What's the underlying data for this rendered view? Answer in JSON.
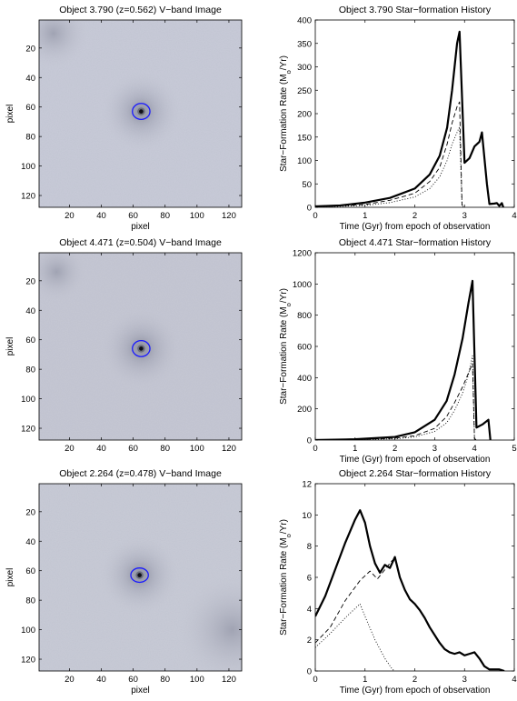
{
  "panels": [
    {
      "image": {
        "title": "Object 3.790 (z=0.562) V−band Image",
        "xlabel": "pixel",
        "ylabel": "pixel",
        "xticks": [
          20,
          40,
          60,
          80,
          100,
          120
        ],
        "yticks": [
          20,
          40,
          60,
          80,
          100,
          120
        ],
        "range": [
          1,
          128
        ],
        "source": [
          65,
          63
        ],
        "ellipse_semi_axes": [
          5.5,
          5.0
        ],
        "marker_color": "#1a1aff",
        "background_color": "#c9ccd9",
        "dark_blobs": [
          {
            "x": 10,
            "y": 10,
            "r": 14
          }
        ]
      },
      "sfh": {
        "title": "Object 3.790 Star−formation History",
        "xlabel": "Time (Gyr) from epoch of observation",
        "ylabel_main": "Star−Formation Rate (M",
        "ylabel_sub": "o",
        "ylabel_tail": "/Yr)",
        "xlim": [
          0,
          4
        ],
        "ylim": [
          0,
          400
        ],
        "xticks": [
          0,
          1,
          2,
          3,
          4
        ],
        "yticks": [
          0,
          50,
          100,
          150,
          200,
          250,
          300,
          350,
          400
        ],
        "series": [
          {
            "style": "solid",
            "points": [
              [
                0,
                2
              ],
              [
                0.5,
                4
              ],
              [
                1,
                10
              ],
              [
                1.5,
                20
              ],
              [
                2,
                40
              ],
              [
                2.3,
                70
              ],
              [
                2.5,
                110
              ],
              [
                2.65,
                170
              ],
              [
                2.75,
                250
              ],
              [
                2.85,
                350
              ],
              [
                2.9,
                375
              ],
              [
                3.0,
                95
              ],
              [
                3.1,
                105
              ],
              [
                3.2,
                130
              ],
              [
                3.3,
                140
              ],
              [
                3.35,
                160
              ],
              [
                3.45,
                50
              ],
              [
                3.5,
                7
              ],
              [
                3.6,
                8
              ],
              [
                3.65,
                9
              ],
              [
                3.7,
                3
              ],
              [
                3.75,
                9
              ],
              [
                3.78,
                0
              ]
            ]
          },
          {
            "style": "dashed",
            "points": [
              [
                0,
                1
              ],
              [
                0.5,
                3
              ],
              [
                1,
                6
              ],
              [
                1.5,
                15
              ],
              [
                2,
                30
              ],
              [
                2.3,
                55
              ],
              [
                2.5,
                85
              ],
              [
                2.65,
                135
              ],
              [
                2.75,
                180
              ],
              [
                2.85,
                215
              ],
              [
                2.9,
                225
              ],
              [
                2.95,
                5
              ],
              [
                3.0,
                0
              ]
            ]
          },
          {
            "style": "dotted",
            "points": [
              [
                0,
                1
              ],
              [
                0.5,
                2
              ],
              [
                1,
                4
              ],
              [
                1.5,
                10
              ],
              [
                2,
                22
              ],
              [
                2.3,
                40
              ],
              [
                2.5,
                65
              ],
              [
                2.65,
                100
              ],
              [
                2.75,
                135
              ],
              [
                2.85,
                160
              ],
              [
                2.9,
                172
              ],
              [
                2.95,
                2
              ],
              [
                3.0,
                0
              ]
            ]
          }
        ]
      }
    },
    {
      "image": {
        "title": "Object 4.471 (z=0.504) V−band Image",
        "xlabel": "",
        "ylabel": "pixel",
        "xticks": [
          20,
          40,
          60,
          80,
          100,
          120
        ],
        "yticks": [
          20,
          40,
          60,
          80,
          100,
          120
        ],
        "range": [
          1,
          128
        ],
        "source": [
          65,
          66
        ],
        "ellipse_semi_axes": [
          5.5,
          5.0
        ],
        "marker_color": "#1a1aff",
        "background_color": "#c6c8d4",
        "dark_blobs": [
          {
            "x": 12,
            "y": 14,
            "r": 12
          }
        ]
      },
      "sfh": {
        "title": "Object 4.471 Star−formation History",
        "xlabel": "Time (Gyr) from epoch of observation",
        "ylabel_main": "Star−Formation Rate (M",
        "ylabel_sub": "o",
        "ylabel_tail": "/Yr)",
        "xlim": [
          0,
          5
        ],
        "ylim": [
          0,
          1200
        ],
        "xticks": [
          0,
          1,
          2,
          3,
          4,
          5
        ],
        "yticks": [
          0,
          200,
          400,
          600,
          800,
          1000,
          1200
        ],
        "series": [
          {
            "style": "solid",
            "points": [
              [
                0,
                0
              ],
              [
                1,
                5
              ],
              [
                2,
                20
              ],
              [
                2.5,
                50
              ],
              [
                3,
                130
              ],
              [
                3.3,
                250
              ],
              [
                3.5,
                420
              ],
              [
                3.7,
                650
              ],
              [
                3.85,
                880
              ],
              [
                3.95,
                1020
              ],
              [
                4.05,
                80
              ],
              [
                4.2,
                100
              ],
              [
                4.35,
                130
              ],
              [
                4.4,
                0
              ]
            ]
          },
          {
            "style": "dashed",
            "points": [
              [
                0,
                0
              ],
              [
                1,
                3
              ],
              [
                2,
                12
              ],
              [
                2.5,
                28
              ],
              [
                3,
                75
              ],
              [
                3.3,
                150
              ],
              [
                3.5,
                240
              ],
              [
                3.7,
                340
              ],
              [
                3.85,
                430
              ],
              [
                3.95,
                490
              ],
              [
                4.0,
                10
              ],
              [
                4.05,
                0
              ]
            ]
          },
          {
            "style": "dotted",
            "points": [
              [
                0,
                0
              ],
              [
                1,
                2
              ],
              [
                2,
                8
              ],
              [
                2.5,
                20
              ],
              [
                3,
                55
              ],
              [
                3.3,
                110
              ],
              [
                3.5,
                190
              ],
              [
                3.7,
                300
              ],
              [
                3.85,
                420
              ],
              [
                3.95,
                540
              ],
              [
                4.0,
                5
              ],
              [
                4.05,
                0
              ]
            ]
          }
        ]
      }
    },
    {
      "image": {
        "title": "Object 2.264 (z=0.478) V−band Image",
        "xlabel": "pixel",
        "ylabel": "pixel",
        "xticks": [
          20,
          40,
          60,
          80,
          100,
          120
        ],
        "yticks": [
          20,
          40,
          60,
          80,
          100,
          120
        ],
        "range": [
          1,
          128
        ],
        "source": [
          64,
          63
        ],
        "ellipse_semi_axes": [
          5.5,
          4.5
        ],
        "marker_color": "#1a1aff",
        "background_color": "#c9ccd7",
        "dark_blobs": [
          {
            "x": 122,
            "y": 100,
            "r": 22
          }
        ]
      },
      "sfh": {
        "title": "Object 2.264 Star−formation History",
        "xlabel": "Time (Gyr) from epoch of observation",
        "ylabel_main": "Star−Formation Rate (M",
        "ylabel_sub": "o",
        "ylabel_tail": "/Yr)",
        "xlim": [
          0,
          4
        ],
        "ylim": [
          0,
          12
        ],
        "xticks": [
          0,
          1,
          2,
          3,
          4
        ],
        "yticks": [
          0,
          2,
          4,
          6,
          8,
          10,
          12
        ],
        "series": [
          {
            "style": "solid",
            "points": [
              [
                0,
                3.5
              ],
              [
                0.2,
                4.8
              ],
              [
                0.4,
                6.5
              ],
              [
                0.6,
                8.2
              ],
              [
                0.8,
                9.7
              ],
              [
                0.9,
                10.3
              ],
              [
                1.0,
                9.5
              ],
              [
                1.1,
                8.0
              ],
              [
                1.2,
                6.9
              ],
              [
                1.3,
                6.3
              ],
              [
                1.4,
                6.8
              ],
              [
                1.5,
                6.6
              ],
              [
                1.6,
                7.3
              ],
              [
                1.7,
                6.0
              ],
              [
                1.8,
                5.2
              ],
              [
                1.9,
                4.6
              ],
              [
                2.0,
                4.3
              ],
              [
                2.1,
                3.9
              ],
              [
                2.2,
                3.4
              ],
              [
                2.3,
                2.8
              ],
              [
                2.4,
                2.3
              ],
              [
                2.5,
                1.8
              ],
              [
                2.6,
                1.4
              ],
              [
                2.7,
                1.2
              ],
              [
                2.8,
                1.1
              ],
              [
                2.9,
                1.2
              ],
              [
                3.0,
                1.0
              ],
              [
                3.1,
                1.1
              ],
              [
                3.2,
                1.2
              ],
              [
                3.3,
                0.8
              ],
              [
                3.4,
                0.3
              ],
              [
                3.5,
                0.1
              ],
              [
                3.7,
                0.1
              ],
              [
                3.8,
                0
              ]
            ]
          },
          {
            "style": "dashed",
            "points": [
              [
                0,
                1.8
              ],
              [
                0.3,
                2.8
              ],
              [
                0.6,
                4.5
              ],
              [
                0.9,
                5.8
              ],
              [
                1.1,
                6.4
              ],
              [
                1.25,
                5.9
              ],
              [
                1.4,
                6.5
              ],
              [
                1.55,
                7.1
              ]
            ]
          },
          {
            "style": "dotted",
            "points": [
              [
                0,
                1.5
              ],
              [
                0.3,
                2.4
              ],
              [
                0.6,
                3.4
              ],
              [
                0.8,
                4.0
              ],
              [
                0.9,
                4.3
              ],
              [
                1.0,
                3.5
              ],
              [
                1.2,
                2.0
              ],
              [
                1.4,
                0.8
              ],
              [
                1.55,
                0.1
              ],
              [
                1.6,
                0
              ]
            ]
          }
        ]
      }
    }
  ]
}
